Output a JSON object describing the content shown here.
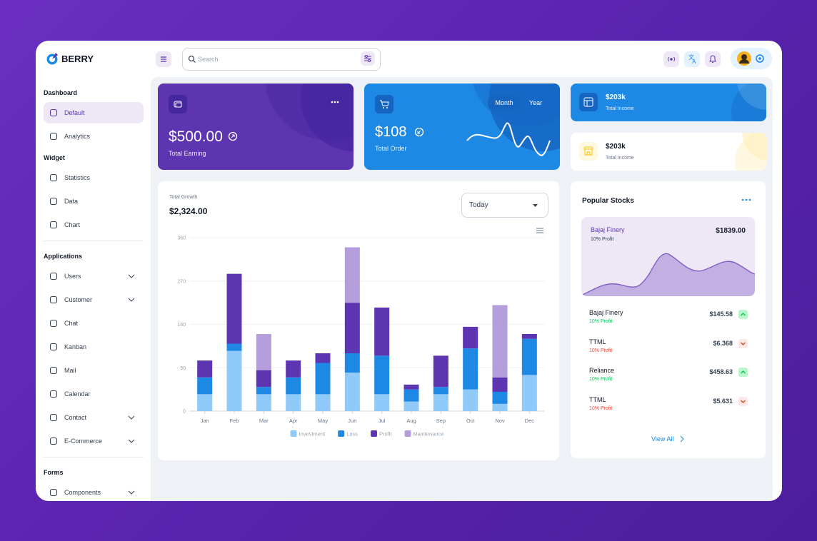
{
  "brand": "BERRY",
  "search_placeholder": "Search",
  "sidebar": {
    "sections": [
      {
        "title": "Dashboard",
        "items": [
          "Default",
          "Analytics"
        ]
      },
      {
        "title": "Widget",
        "items": [
          "Statistics",
          "Data",
          "Chart"
        ]
      },
      {
        "title": "Applications",
        "items": [
          "Users",
          "Customer",
          "Chat",
          "Kanban",
          "Mail",
          "Calendar",
          "Contact",
          "E-Commerce"
        ]
      },
      {
        "title": "Forms",
        "items": [
          "Components"
        ]
      }
    ]
  },
  "cards": {
    "earning": {
      "value": "$500.00",
      "label": "Total Earning"
    },
    "order": {
      "value": "$108",
      "label": "Total Order",
      "tabs": [
        "Month",
        "Year"
      ]
    },
    "income_primary": {
      "value": "$203k",
      "label": "Total Income"
    },
    "income_secondary": {
      "value": "$203k",
      "label": "Total Income"
    }
  },
  "growth": {
    "label": "Total Growth",
    "value": "$2,324.00",
    "filter": "Today"
  },
  "chart_data": {
    "type": "bar",
    "stacked": true,
    "categories": [
      "Jan",
      "Feb",
      "Mar",
      "Apr",
      "May",
      "Jun",
      "Jul",
      "Aug",
      "Sep",
      "Oct",
      "Nov",
      "Dec"
    ],
    "series": [
      {
        "name": "Investment",
        "color": "#90caf9",
        "values": [
          35,
          125,
          35,
          35,
          35,
          80,
          35,
          20,
          35,
          45,
          15,
          75
        ]
      },
      {
        "name": "Loss",
        "color": "#1e88e5",
        "values": [
          35,
          15,
          15,
          35,
          65,
          40,
          80,
          25,
          15,
          85,
          25,
          75
        ]
      },
      {
        "name": "Profit",
        "color": "#5e35b1",
        "values": [
          35,
          145,
          35,
          35,
          20,
          105,
          100,
          10,
          65,
          45,
          30,
          10
        ]
      },
      {
        "name": "Maintenance",
        "color": "#b39ddb",
        "values": [
          0,
          0,
          75,
          0,
          0,
          115,
          0,
          0,
          0,
          0,
          150,
          0
        ]
      }
    ],
    "ylim": [
      0,
      360
    ],
    "yticks": [
      0,
      90,
      180,
      270,
      360
    ],
    "grid": true,
    "legend": "bottom"
  },
  "stocks": {
    "title": "Popular Stocks",
    "featured": {
      "name": "Bajaj Finery",
      "profit": "10% Profit",
      "price": "$1839.00"
    },
    "rows": [
      {
        "name": "Bajaj Finery",
        "profit": "10% Profit",
        "price": "$145.58"
      },
      {
        "name": "TTML",
        "profit": "10% Profit",
        "price": "$6.368"
      },
      {
        "name": "Reliance",
        "profit": "10% Profit",
        "price": "$458.63"
      },
      {
        "name": "TTML",
        "profit": "10% Profit",
        "price": "$5.631"
      }
    ],
    "link": "View All"
  }
}
